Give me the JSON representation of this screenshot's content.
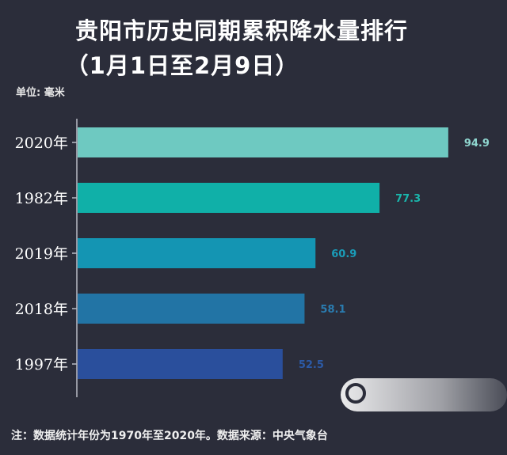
{
  "title_line1": "贵阳市历史同期累积降水量排行",
  "title_line2": "（1月1日至2月9日）",
  "unit_label": "单位: 毫米",
  "footnote": "注：数据统计年份为1970年至2020年。数据来源：中央气象台",
  "chart_data": {
    "type": "bar",
    "orientation": "horizontal",
    "title": "贵阳市历史同期累积降水量排行（1月1日至2月9日）",
    "unit": "毫米",
    "categories": [
      "2020年",
      "1982年",
      "2019年",
      "2018年",
      "1997年"
    ],
    "values": [
      94.9,
      77.3,
      60.9,
      58.1,
      52.5
    ],
    "value_labels": [
      "94.9",
      "77.3",
      "60.9",
      "58.1",
      "52.5"
    ],
    "colors": [
      "#6ec9c1",
      "#10b0a8",
      "#1495b3",
      "#2274a5",
      "#2a4f9c"
    ],
    "label_colors": [
      "#8fd6cf",
      "#1ab7ad",
      "#1a9cb8",
      "#2a7cb0",
      "#2c5aa6"
    ],
    "xlim": [
      0,
      100
    ],
    "grid": false,
    "legend": "none"
  }
}
